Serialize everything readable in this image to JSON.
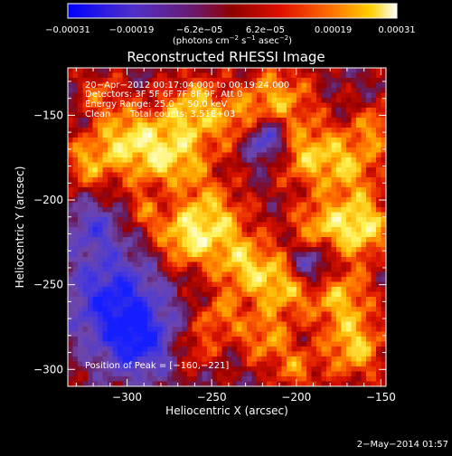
{
  "chart_data": {
    "type": "heatmap",
    "title": "Reconstructed RHESSI Image",
    "xlabel": "Heliocentric X (arcsec)",
    "ylabel": "Heliocentric Y (arcsec)",
    "xlim": [
      -335,
      -147
    ],
    "ylim": [
      -310,
      -122
    ],
    "x_ticks": [
      -300,
      -250,
      -200,
      -150
    ],
    "y_ticks": [
      -300,
      -250,
      -200,
      -150
    ],
    "x_tick_labels": [
      "−300",
      "−250",
      "−200",
      "−150"
    ],
    "y_tick_labels": [
      "−300",
      "−250",
      "−200",
      "−150"
    ],
    "colorbar": {
      "range": [
        -0.00031,
        0.00031
      ],
      "ticks": [
        -0.00031,
        -0.00019,
        -6.2e-05,
        6.2e-05,
        0.00019,
        0.00031
      ],
      "tick_labels": [
        "−0.00031",
        "−0.00019",
        "−6.2e−05",
        "6.2e−05",
        "0.00019",
        "0.00031"
      ],
      "units_text": "(photons cm",
      "units_exp1": "−2",
      "units_mid": " s",
      "units_exp2": "−1",
      "units_end": " asec",
      "units_exp3": "−2",
      "units_close": ")"
    },
    "annotations": {
      "time_range": "20−Apr−2012 00:17:04.000 to 00:19:24.000",
      "detectors": "Detectors: 3F 5F 6F 7F 8F 9F, Att 0",
      "energy": "Energy Range: 25.0 − 50.0 keV",
      "clean_label": "Clean",
      "total_counts": "Total counts: 3.51E+03",
      "peak": "Position of Peak = [−160,−221]"
    },
    "peak_position": [
      -160,
      -221
    ],
    "grid": false,
    "colors": {
      "low": "#2020ff",
      "mid_low": "#7a50c0",
      "mid": "#c00000",
      "mid_high": "#ff6000",
      "high": "#ffffe0"
    }
  },
  "footer": {
    "date": "2−May−2014 01:57"
  }
}
